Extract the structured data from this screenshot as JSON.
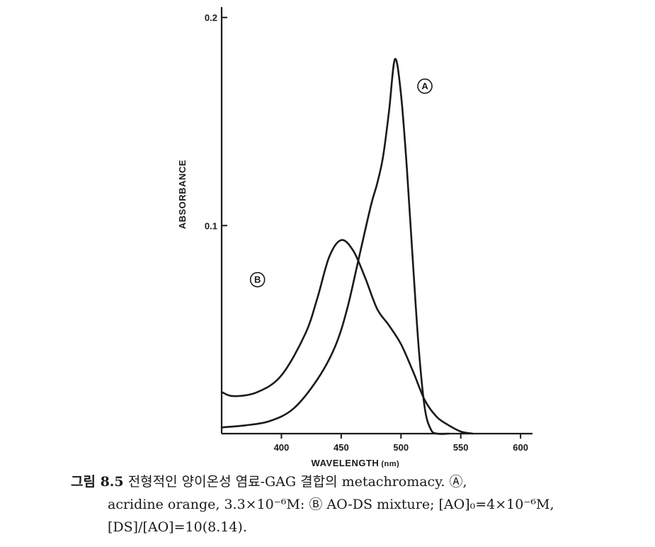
{
  "chart_data": {
    "type": "line",
    "xlabel": "WAVELENGTH",
    "xunit": "(nm)",
    "ylabel": "ABSORBANCE",
    "xlim": [
      350,
      610
    ],
    "ylim": [
      0,
      0.205
    ],
    "x_ticks": [
      {
        "value": 400,
        "label": "400"
      },
      {
        "value": 450,
        "label": "450"
      },
      {
        "value": 500,
        "label": "500"
      },
      {
        "value": 550,
        "label": "550"
      },
      {
        "value": 600,
        "label": "600"
      }
    ],
    "y_ticks": [
      {
        "value": 0.1,
        "label": "0.1"
      },
      {
        "value": 0.2,
        "label": "0.2"
      }
    ],
    "series": [
      {
        "name": "Ⓐ",
        "label_at": [
          520,
          0.167
        ],
        "x": [
          350,
          370,
          390,
          410,
          430,
          445,
          455,
          465,
          475,
          480,
          485,
          490,
          495,
          500,
          505,
          510,
          515,
          520,
          525,
          530,
          540
        ],
        "y": [
          0.003,
          0.004,
          0.006,
          0.012,
          0.026,
          0.042,
          0.06,
          0.085,
          0.11,
          0.12,
          0.133,
          0.155,
          0.18,
          0.163,
          0.127,
          0.082,
          0.04,
          0.012,
          0.002,
          0.0,
          0.0
        ]
      },
      {
        "name": "Ⓑ",
        "label_at": [
          380,
          0.074
        ],
        "x": [
          350,
          360,
          380,
          400,
          420,
          430,
          440,
          450,
          460,
          470,
          480,
          490,
          500,
          510,
          520,
          530,
          540,
          550,
          560
        ],
        "y": [
          0.02,
          0.018,
          0.02,
          0.028,
          0.048,
          0.065,
          0.085,
          0.093,
          0.088,
          0.075,
          0.06,
          0.052,
          0.043,
          0.03,
          0.016,
          0.008,
          0.004,
          0.001,
          0.0
        ]
      }
    ]
  },
  "caption": {
    "label": "그림 8.5",
    "line1": "전형적인 양이온성 염료-GAG 결합의 metachromacy. Ⓐ,",
    "line2": "acridine orange, 3.3×10⁻⁶M: Ⓑ AO-DS mixture; [AO]₀=4×10⁻⁶M,",
    "line3": "[DS]/[AO]=10(8.14)."
  }
}
